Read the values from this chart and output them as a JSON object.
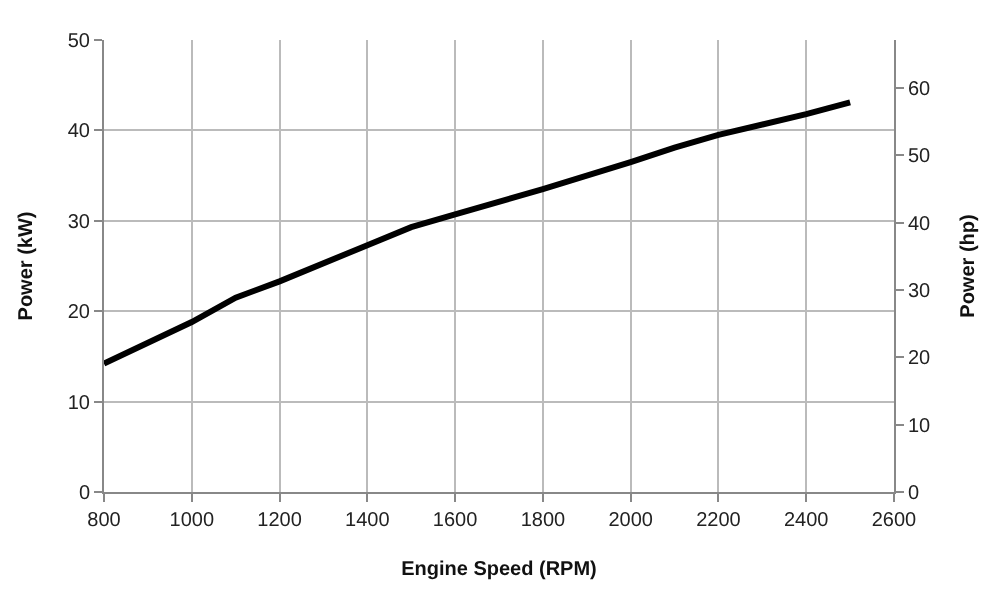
{
  "chart_data": {
    "type": "line",
    "xlabel": "Engine Speed (RPM)",
    "ylabel": "Power (kW)",
    "y2label": "Power (hp)",
    "x": [
      800,
      1000,
      1100,
      1200,
      1400,
      1500,
      1600,
      1800,
      2000,
      2100,
      2200,
      2400,
      2500
    ],
    "series": [
      {
        "color": "#000000",
        "values": [
          14.2,
          18.8,
          21.5,
          23.3,
          27.3,
          29.3,
          30.7,
          33.5,
          36.5,
          38.1,
          39.5,
          41.8,
          43.1
        ]
      }
    ],
    "xlim": [
      800,
      2600
    ],
    "xticks": [
      800,
      1000,
      1200,
      1400,
      1600,
      1800,
      2000,
      2200,
      2400,
      2600
    ],
    "ylim": [
      0,
      50
    ],
    "yticks": [
      0,
      10,
      20,
      30,
      40,
      50
    ],
    "y2lim": [
      0,
      67.1
    ],
    "y2ticks": [
      0,
      10,
      20,
      30,
      40,
      50,
      60
    ],
    "grid": true,
    "marker": "none",
    "line_style": "solid"
  }
}
